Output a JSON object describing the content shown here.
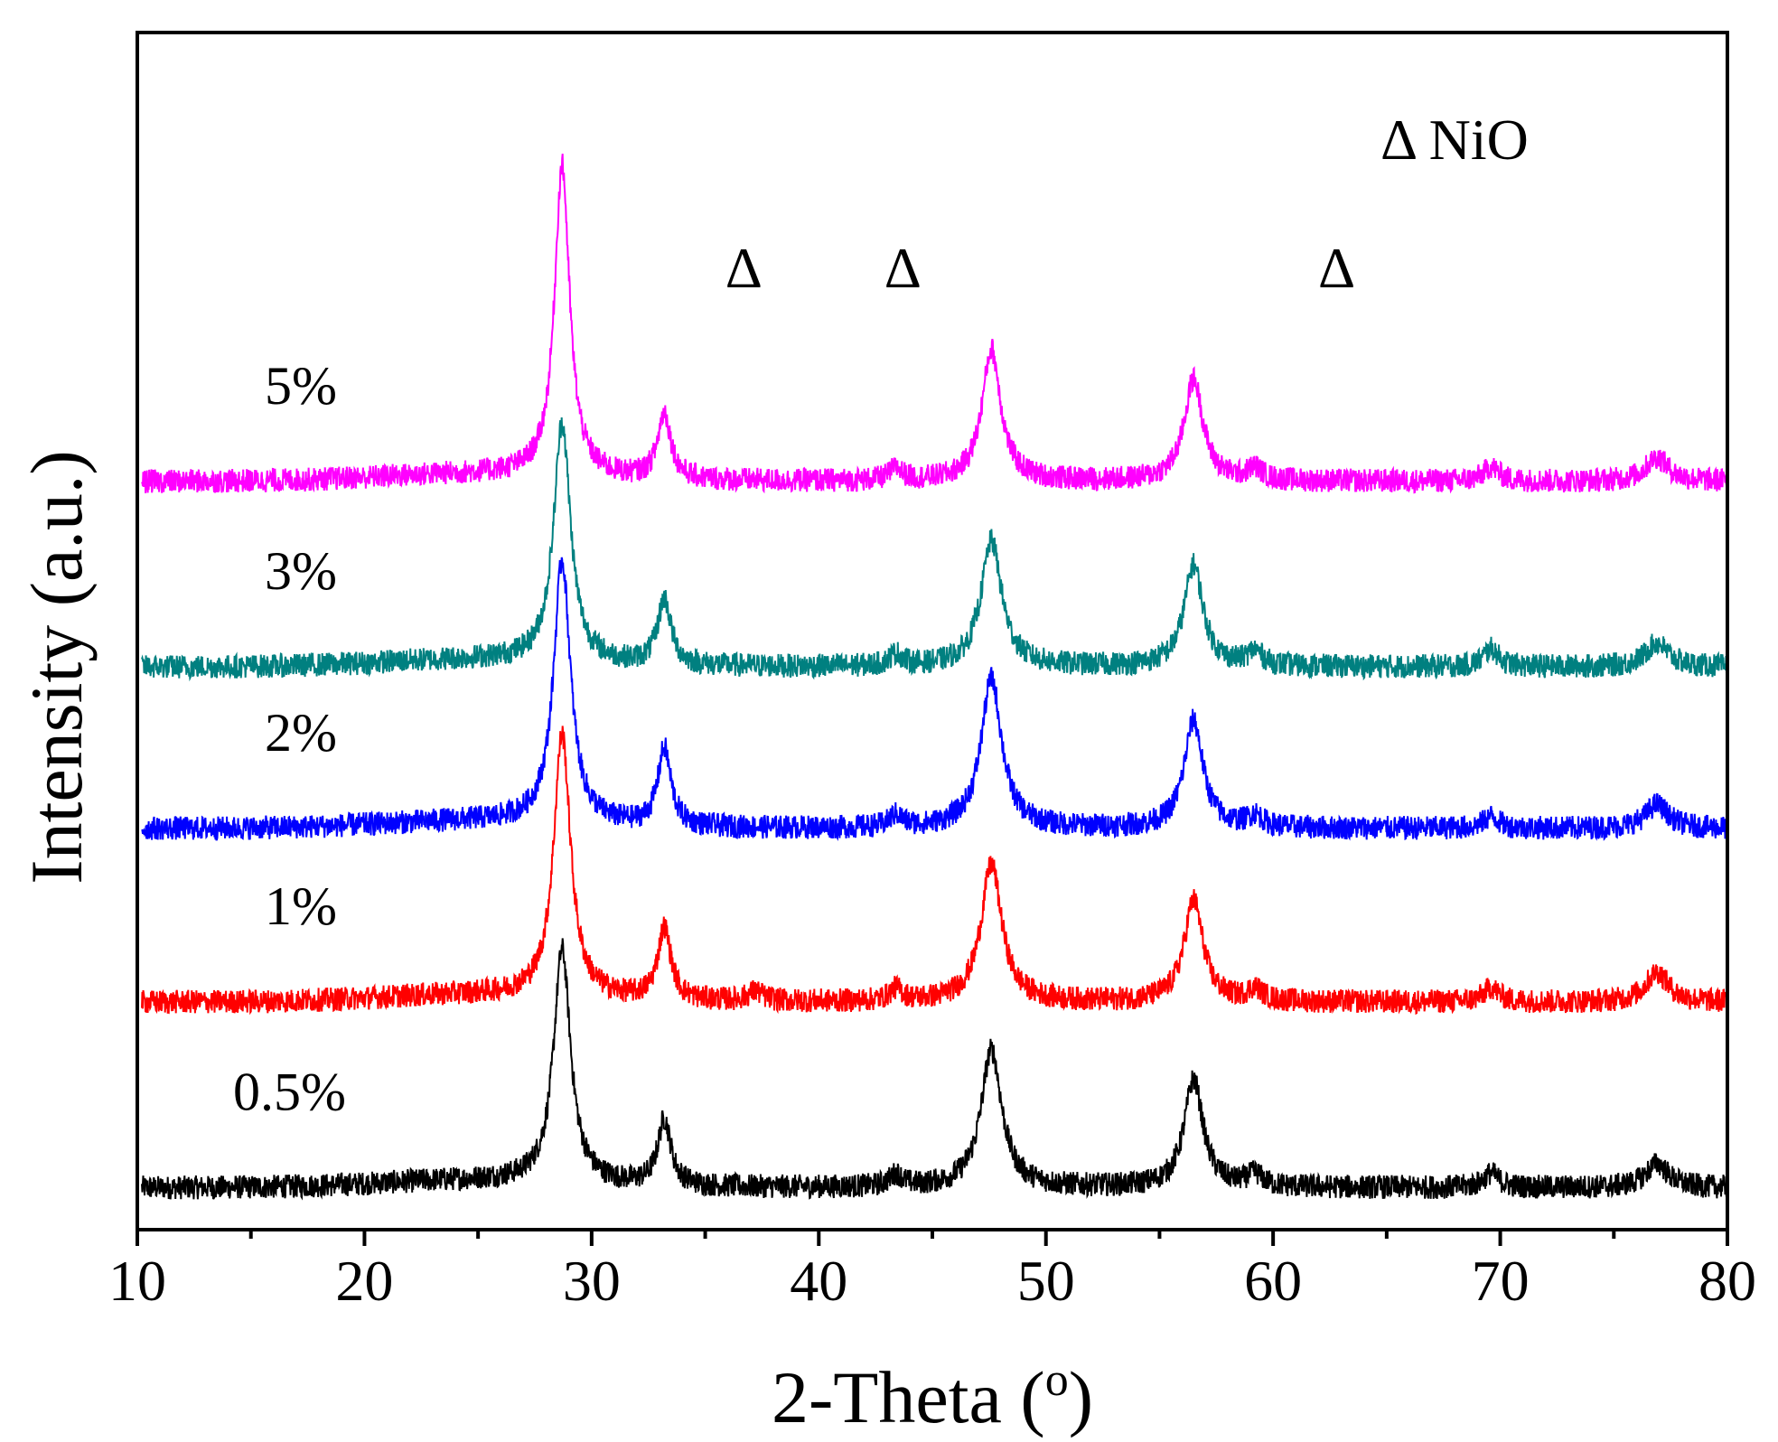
{
  "chart_data": {
    "type": "line",
    "title": "",
    "xlabel": "2-Theta (",
    "xlabel_sup": "o",
    "xlabel_close": ")",
    "ylabel": "Intensity (a.u.)",
    "xlim": [
      10,
      80
    ],
    "xticks": [
      10,
      20,
      30,
      40,
      50,
      60,
      70,
      80
    ],
    "xtick_labels": [
      "10",
      "20",
      "30",
      "40",
      "50",
      "60",
      "70",
      "80"
    ],
    "ylim": [
      0,
      100
    ],
    "yticks_visible": false,
    "grid": false,
    "legend": "none",
    "series": [
      {
        "name": "0.5%",
        "color": "#000000",
        "baseline": 3.5,
        "peaks": [
          [
            28.7,
            19.5,
            0.45
          ],
          [
            33.2,
            5.5,
            0.35
          ],
          [
            43.4,
            1.0,
            0.35
          ],
          [
            47.6,
            11.5,
            0.55
          ],
          [
            56.5,
            9.0,
            0.5
          ],
          [
            59.2,
            1.0,
            0.4
          ],
          [
            69.6,
            1.2,
            0.4
          ],
          [
            76.9,
            2.0,
            0.6
          ]
        ]
      },
      {
        "name": "1%",
        "color": "#ff0000",
        "baseline": 19.0,
        "peaks": [
          [
            28.7,
            22.0,
            0.45
          ],
          [
            33.2,
            6.0,
            0.35
          ],
          [
            37.2,
            0.8,
            0.4
          ],
          [
            43.4,
            1.0,
            0.35
          ],
          [
            47.6,
            11.5,
            0.55
          ],
          [
            56.5,
            8.5,
            0.5
          ],
          [
            59.2,
            1.0,
            0.4
          ],
          [
            69.6,
            1.2,
            0.4
          ],
          [
            76.9,
            2.5,
            0.6
          ]
        ]
      },
      {
        "name": "2%",
        "color": "#0000ff",
        "baseline": 33.5,
        "peaks": [
          [
            28.7,
            22.0,
            0.45
          ],
          [
            33.2,
            6.5,
            0.35
          ],
          [
            43.4,
            1.0,
            0.35
          ],
          [
            47.6,
            12.5,
            0.55
          ],
          [
            56.5,
            9.0,
            0.5
          ],
          [
            59.2,
            1.0,
            0.4
          ],
          [
            69.6,
            1.0,
            0.4
          ],
          [
            76.9,
            2.0,
            0.6
          ]
        ]
      },
      {
        "name": "3%",
        "color": "#008080",
        "baseline": 47.0,
        "peaks": [
          [
            28.7,
            20.0,
            0.45
          ],
          [
            33.2,
            5.5,
            0.35
          ],
          [
            43.4,
            1.0,
            0.35
          ],
          [
            47.6,
            10.5,
            0.55
          ],
          [
            56.5,
            8.5,
            0.5
          ],
          [
            59.2,
            1.2,
            0.4
          ],
          [
            69.6,
            1.5,
            0.4
          ],
          [
            76.9,
            2.0,
            0.6
          ]
        ]
      },
      {
        "name": "5%",
        "color": "#ff00ff",
        "baseline": 62.5,
        "peaks": [
          [
            28.7,
            26.0,
            0.4
          ],
          [
            33.2,
            5.5,
            0.35
          ],
          [
            43.4,
            1.0,
            0.35
          ],
          [
            47.6,
            11.0,
            0.5
          ],
          [
            56.5,
            8.5,
            0.5
          ],
          [
            59.2,
            1.0,
            0.4
          ],
          [
            69.6,
            1.2,
            0.4
          ],
          [
            76.9,
            2.0,
            0.6
          ]
        ]
      }
    ],
    "annotations": [
      {
        "text": "Δ",
        "x": 36.7
      },
      {
        "text": "Δ",
        "x": 43.7
      },
      {
        "text": "Δ",
        "x": 62.8
      }
    ],
    "legend_note": "Δ NiO"
  }
}
